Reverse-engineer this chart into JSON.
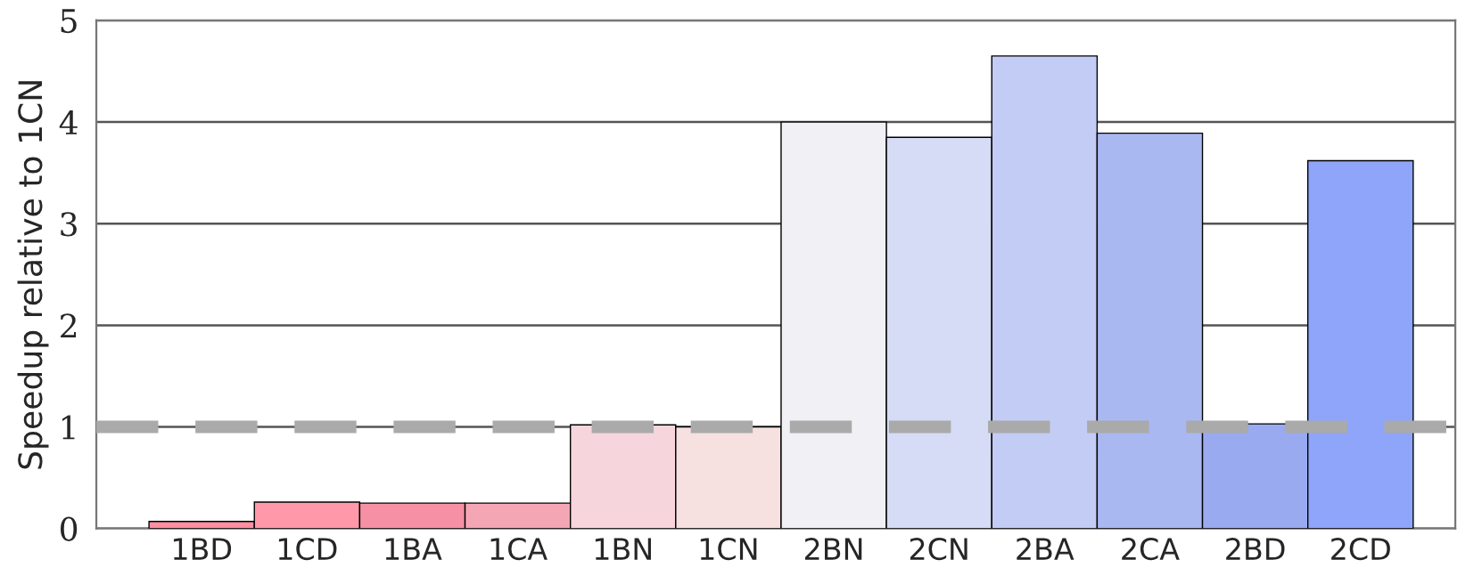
{
  "chart_data": {
    "type": "bar",
    "ylabel": "Speedup relative to 1CN",
    "categories": [
      "1BD",
      "1CD",
      "1BA",
      "1CA",
      "1BN",
      "1CN",
      "2BN",
      "2CN",
      "2BA",
      "2CA",
      "2BD",
      "2CD"
    ],
    "values": [
      0.07,
      0.26,
      0.25,
      0.25,
      1.02,
      1.0,
      4.0,
      3.85,
      4.65,
      3.89,
      1.03,
      3.62
    ],
    "colors": [
      "#ff8fa3",
      "#ff99aa",
      "#f590a5",
      "#f4a6b4",
      "#f7d5dc",
      "#f6e0e0",
      "#f0f0f5",
      "#d6dcf5",
      "#c3ccf5",
      "#aab8f2",
      "#9aaaf0",
      "#8fa5fa"
    ],
    "ylim": [
      0,
      5
    ],
    "yticks": [
      0,
      1,
      2,
      3,
      4,
      5
    ],
    "grid": "y",
    "ref_lines": [
      {
        "axis": "y",
        "value": 1,
        "color": "#aaaaaa",
        "line_style": "dashed"
      }
    ]
  }
}
